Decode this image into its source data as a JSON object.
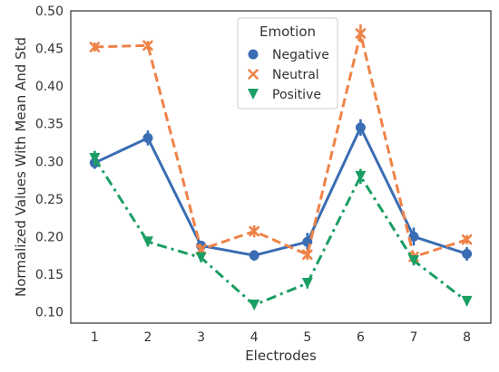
{
  "chart_data": {
    "type": "line",
    "title": "",
    "xlabel": "Electrodes",
    "ylabel": "Normalized Values With Mean And Std",
    "x": [
      1,
      2,
      3,
      4,
      5,
      6,
      7,
      8
    ],
    "ylim": [
      0.085,
      0.5
    ],
    "yticks": [
      0.1,
      0.15,
      0.2,
      0.25,
      0.3,
      0.35,
      0.4,
      0.45,
      0.5
    ],
    "ytick_labels": [
      "0.10",
      "0.15",
      "0.20",
      "0.25",
      "0.30",
      "0.35",
      "0.40",
      "0.45",
      "0.50"
    ],
    "grid": false,
    "legend": {
      "title": "Emotion",
      "position": "top-center"
    },
    "series": [
      {
        "name": "Negative",
        "color": "#3a6db3",
        "marker": "circle",
        "line_style": "solid",
        "values": [
          0.298,
          0.331,
          0.188,
          0.175,
          0.193,
          0.345,
          0.2,
          0.177
        ],
        "errors": [
          0.008,
          0.01,
          0.006,
          0.007,
          0.012,
          0.011,
          0.012,
          0.009
        ]
      },
      {
        "name": "Neutral",
        "color": "#ee8348",
        "marker": "x",
        "line_style": "dashed",
        "values": [
          0.452,
          0.454,
          0.183,
          0.207,
          0.176,
          0.47,
          0.173,
          0.196
        ],
        "errors": [
          0.006,
          0.006,
          0.005,
          0.008,
          0.007,
          0.012,
          0.005,
          0.006
        ]
      },
      {
        "name": "Positive",
        "color": "#1b9e63",
        "marker": "triangle-down",
        "line_style": "dashdot",
        "values": [
          0.304,
          0.193,
          0.172,
          0.109,
          0.138,
          0.28,
          0.168,
          0.114
        ],
        "errors": [
          0.01,
          0.006,
          0.006,
          0.005,
          0.007,
          0.01,
          0.006,
          0.005
        ]
      }
    ]
  }
}
